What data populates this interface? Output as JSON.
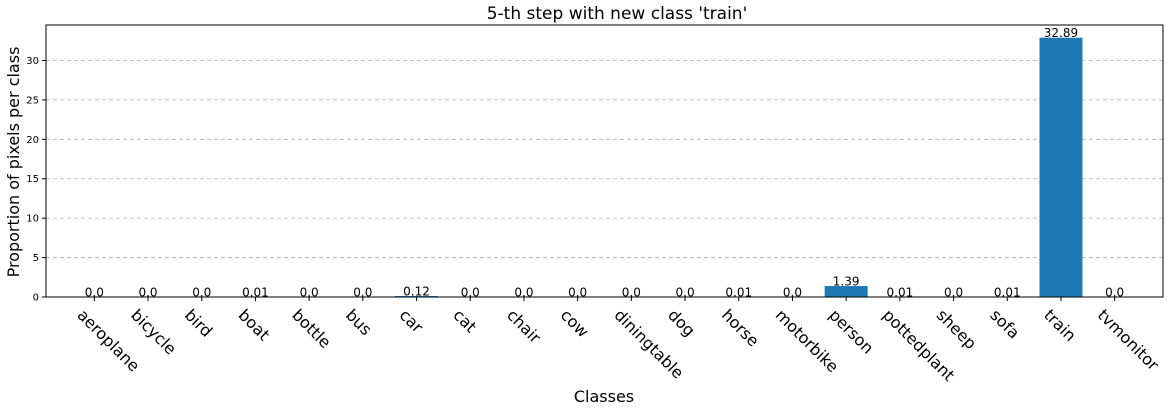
{
  "chart_data": {
    "type": "bar",
    "title": "5-th step with new class 'train'",
    "xlabel": "Classes",
    "ylabel": "Proportion of pixels per class",
    "categories": [
      "aeroplane",
      "bicycle",
      "bird",
      "boat",
      "bottle",
      "bus",
      "car",
      "cat",
      "chair",
      "cow",
      "diningtable",
      "dog",
      "horse",
      "motorbike",
      "person",
      "pottedplant",
      "sheep",
      "sofa",
      "train",
      "tvmonitor"
    ],
    "values": [
      0.0,
      0.0,
      0.0,
      0.01,
      0.0,
      0.0,
      0.12,
      0.0,
      0.0,
      0.0,
      0.0,
      0.0,
      0.01,
      0.0,
      1.39,
      0.01,
      0.0,
      0.01,
      32.89,
      0.0
    ],
    "data_labels": [
      "0.0",
      "0.0",
      "0.0",
      "0.01",
      "0.0",
      "0.0",
      "0.12",
      "0.0",
      "0.0",
      "0.0",
      "0.0",
      "0.0",
      "0.01",
      "0.0",
      "1.39",
      "0.01",
      "0.0",
      "0.01",
      "32.89",
      "0.0"
    ],
    "yticks": [
      0,
      5,
      10,
      15,
      20,
      25,
      30
    ],
    "ylim": [
      0,
      34.5
    ],
    "grid": "y-dashed",
    "bar_color": "#1f77b4",
    "grid_color": "#b0b0b0"
  }
}
